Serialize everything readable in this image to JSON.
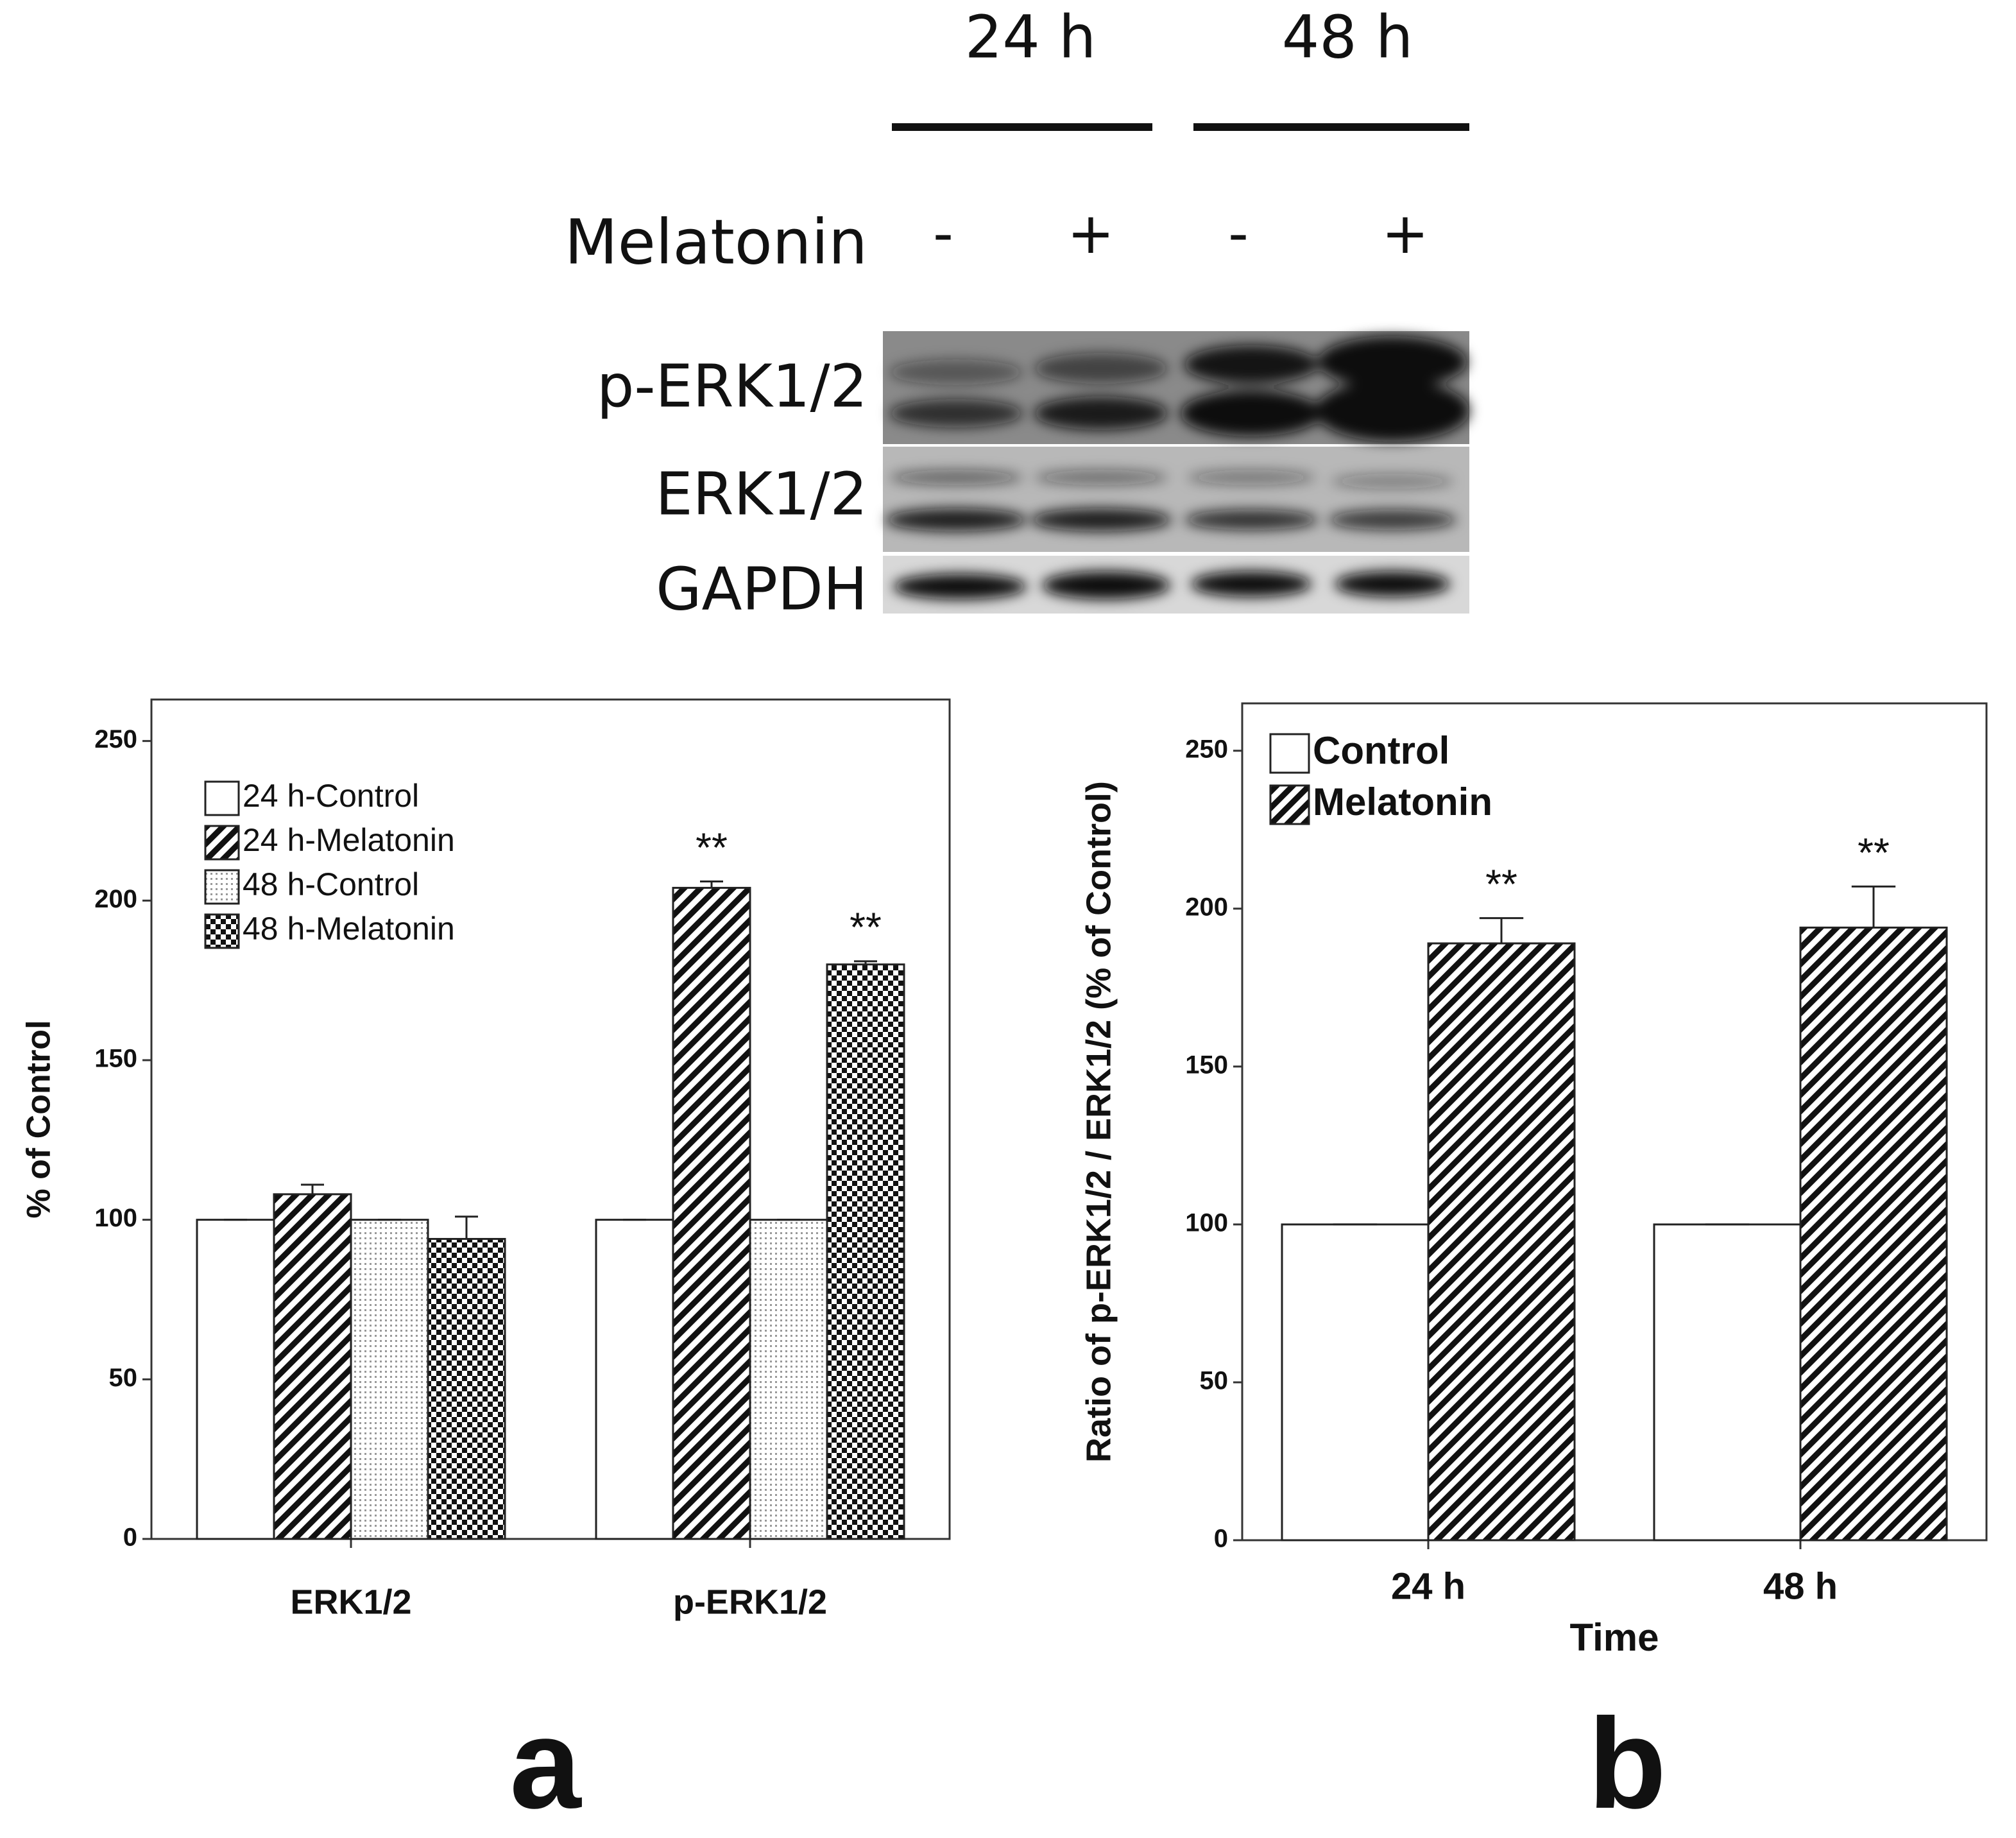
{
  "blot": {
    "time_labels": [
      "24 h",
      "48 h"
    ],
    "treatment_label": "Melatonin",
    "treatment_signs": [
      "-",
      "+",
      "-",
      "+"
    ],
    "rows": [
      "p-ERK1/2",
      "ERK1/2",
      "GAPDH"
    ]
  },
  "panel_labels": [
    "a",
    "b"
  ],
  "chart_data": [
    {
      "type": "bar",
      "y_label": "% of Control",
      "categories": [
        "ERK1/2",
        "p-ERK1/2"
      ],
      "series": [
        {
          "name": "24  h-Control",
          "pattern": "none",
          "values": [
            100,
            100
          ],
          "errors": [
            0,
            0
          ]
        },
        {
          "name": "24  h-Melatonin",
          "pattern": "hatch",
          "values": [
            108,
            204
          ],
          "errors": [
            3,
            2
          ]
        },
        {
          "name": "48  h-Control",
          "pattern": "dots",
          "values": [
            100,
            100
          ],
          "errors": [
            0,
            0
          ]
        },
        {
          "name": "48  h-Melatonin",
          "pattern": "checker",
          "values": [
            94,
            180
          ],
          "errors": [
            7,
            1
          ]
        }
      ],
      "ylim": [
        0,
        263
      ],
      "yticks": [
        0,
        50,
        100,
        150,
        200,
        250
      ],
      "annotations": [
        "**",
        "**"
      ]
    },
    {
      "type": "bar",
      "y_label": "Ratio of p-ERK1/2 / ERK1/2 (% of Control)",
      "x_label": "Time",
      "categories": [
        "24 h",
        "48 h"
      ],
      "series": [
        {
          "name": "Control",
          "pattern": "none",
          "values": [
            100,
            100
          ],
          "errors": [
            0,
            0
          ]
        },
        {
          "name": "Melatonin",
          "pattern": "hatch",
          "values": [
            189,
            194
          ],
          "errors": [
            8,
            13
          ]
        }
      ],
      "ylim": [
        0,
        265
      ],
      "yticks": [
        0,
        50,
        100,
        150,
        200,
        250
      ],
      "annotations": [
        "**",
        "**"
      ]
    }
  ]
}
